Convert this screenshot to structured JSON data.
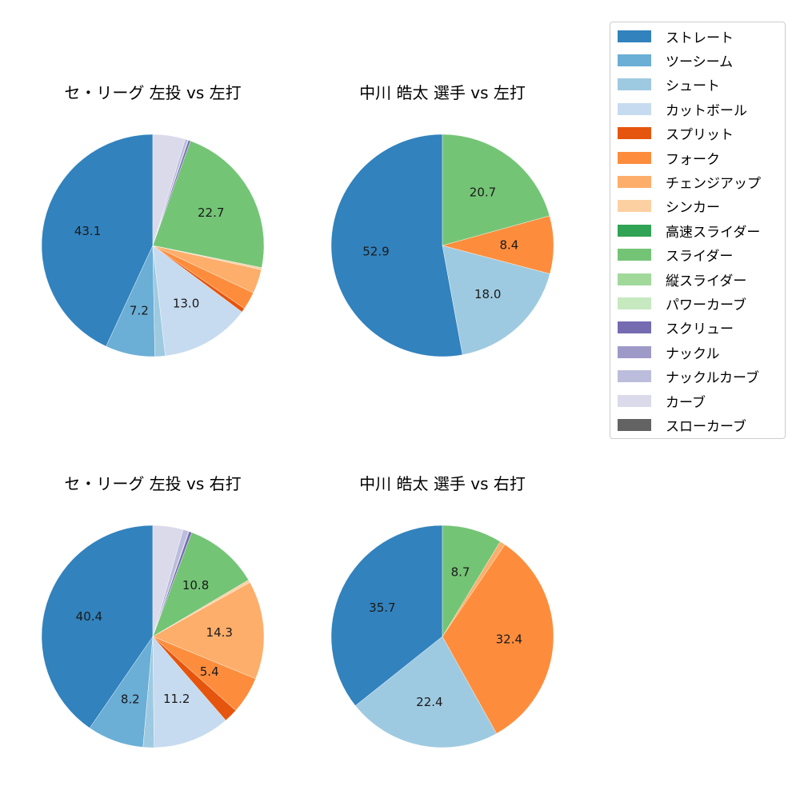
{
  "colors": {
    "ストレート": "#3182bd",
    "ツーシーム": "#6baed6",
    "シュート": "#9ecae1",
    "カットボール": "#c6dbef",
    "スプリット": "#e6550d",
    "フォーク": "#fd8d3c",
    "チェンジアップ": "#fdae6b",
    "シンカー": "#fdd0a2",
    "高速スライダー": "#31a354",
    "スライダー": "#74c476",
    "縦スライダー": "#a1d99b",
    "パワーカーブ": "#c7e9c0",
    "スクリュー": "#756bb1",
    "ナックル": "#9e9ac8",
    "ナックルカーブ": "#bcbddc",
    "カーブ": "#dadaeb",
    "スローカーブ": "#636363"
  },
  "legend": {
    "items": [
      {
        "label": "ストレート",
        "color": "#3182bd"
      },
      {
        "label": "ツーシーム",
        "color": "#6baed6"
      },
      {
        "label": "シュート",
        "color": "#9ecae1"
      },
      {
        "label": "カットボール",
        "color": "#c6dbef"
      },
      {
        "label": "スプリット",
        "color": "#e6550d"
      },
      {
        "label": "フォーク",
        "color": "#fd8d3c"
      },
      {
        "label": "チェンジアップ",
        "color": "#fdae6b"
      },
      {
        "label": "シンカー",
        "color": "#fdd0a2"
      },
      {
        "label": "高速スライダー",
        "color": "#31a354"
      },
      {
        "label": "スライダー",
        "color": "#74c476"
      },
      {
        "label": "縦スライダー",
        "color": "#a1d99b"
      },
      {
        "label": "パワーカーブ",
        "color": "#c7e9c0"
      },
      {
        "label": "スクリュー",
        "color": "#756bb1"
      },
      {
        "label": "ナックル",
        "color": "#9e9ac8"
      },
      {
        "label": "ナックルカーブ",
        "color": "#bcbddc"
      },
      {
        "label": "カーブ",
        "color": "#dadaeb"
      },
      {
        "label": "スローカーブ",
        "color": "#636363"
      }
    ]
  },
  "panels": [
    {
      "title": "セ・リーグ 左投 vs 左打"
    },
    {
      "title": "中川 皓太 選手 vs 左打"
    },
    {
      "title": "セ・リーグ 左投 vs 右打"
    },
    {
      "title": "中川 皓太 選手 vs 右打"
    }
  ],
  "chart_data": [
    {
      "type": "pie",
      "title": "セ・リーグ 左投 vs 左打",
      "start_angle": 90,
      "direction": "counterclockwise",
      "label_threshold": 5,
      "slices": [
        {
          "label": "ストレート",
          "value": 43.1
        },
        {
          "label": "ツーシーム",
          "value": 7.2
        },
        {
          "label": "シュート",
          "value": 1.5
        },
        {
          "label": "カットボール",
          "value": 13.0
        },
        {
          "label": "スプリット",
          "value": 0.6
        },
        {
          "label": "フォーク",
          "value": 2.6
        },
        {
          "label": "チェンジアップ",
          "value": 3.5
        },
        {
          "label": "シンカー",
          "value": 0.3
        },
        {
          "label": "スライダー",
          "value": 22.7
        },
        {
          "label": "スクリュー",
          "value": 0.3
        },
        {
          "label": "ナックル",
          "value": 0.1
        },
        {
          "label": "ナックルカーブ",
          "value": 0.4
        },
        {
          "label": "カーブ",
          "value": 4.7
        }
      ]
    },
    {
      "type": "pie",
      "title": "中川 皓太 選手 vs 左打",
      "start_angle": 90,
      "direction": "counterclockwise",
      "label_threshold": 5,
      "slices": [
        {
          "label": "ストレート",
          "value": 52.9
        },
        {
          "label": "シュート",
          "value": 18.0
        },
        {
          "label": "フォーク",
          "value": 8.4
        },
        {
          "label": "スライダー",
          "value": 20.7
        }
      ]
    },
    {
      "type": "pie",
      "title": "セ・リーグ 左投 vs 右打",
      "start_angle": 90,
      "direction": "counterclockwise",
      "label_threshold": 5,
      "slices": [
        {
          "label": "ストレート",
          "value": 40.4
        },
        {
          "label": "ツーシーム",
          "value": 8.2
        },
        {
          "label": "シュート",
          "value": 1.6
        },
        {
          "label": "カットボール",
          "value": 11.2
        },
        {
          "label": "スプリット",
          "value": 2.0
        },
        {
          "label": "フォーク",
          "value": 5.4
        },
        {
          "label": "チェンジアップ",
          "value": 14.3
        },
        {
          "label": "シンカー",
          "value": 0.4
        },
        {
          "label": "スライダー",
          "value": 10.8
        },
        {
          "label": "スクリュー",
          "value": 0.4
        },
        {
          "label": "ナックル",
          "value": 0.1
        },
        {
          "label": "ナックルカーブ",
          "value": 0.8
        },
        {
          "label": "カーブ",
          "value": 4.4
        }
      ]
    },
    {
      "type": "pie",
      "title": "中川 皓太 選手 vs 右打",
      "start_angle": 90,
      "direction": "counterclockwise",
      "label_threshold": 5,
      "slices": [
        {
          "label": "ストレート",
          "value": 35.7
        },
        {
          "label": "シュート",
          "value": 22.4
        },
        {
          "label": "フォーク",
          "value": 32.4
        },
        {
          "label": "チェンジアップ",
          "value": 0.8
        },
        {
          "label": "スライダー",
          "value": 8.7
        }
      ]
    }
  ]
}
